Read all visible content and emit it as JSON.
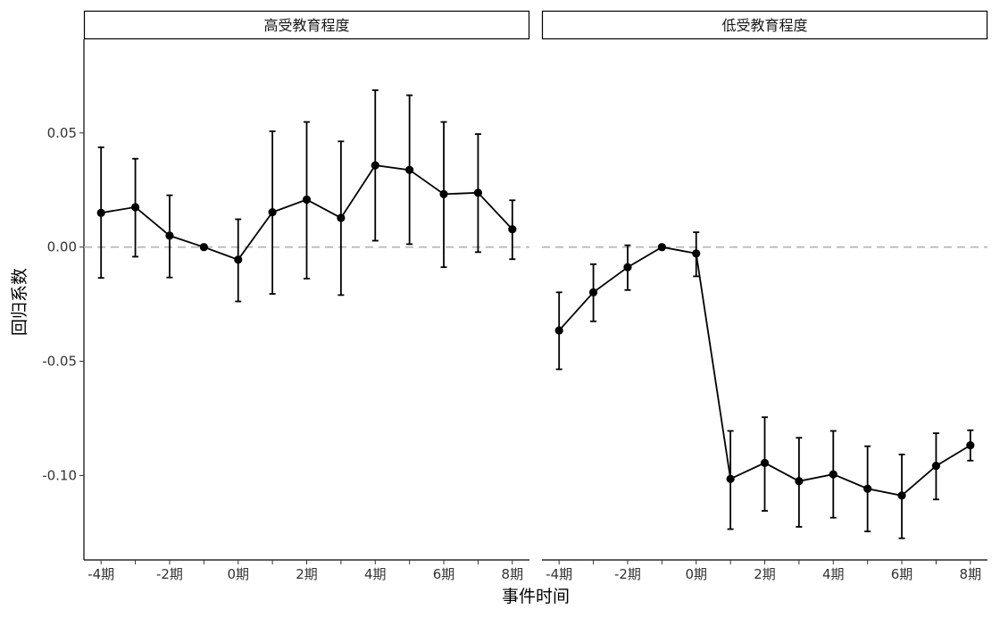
{
  "chart_data": {
    "type": "line",
    "xlabel": "事件时间",
    "ylabel": "回归系数",
    "x": [
      -4,
      -3,
      -2,
      -1,
      0,
      1,
      2,
      3,
      4,
      5,
      6,
      7,
      8
    ],
    "xtick_values": [
      -4,
      -2,
      0,
      2,
      4,
      6,
      8
    ],
    "xtick_labels": [
      "-4期",
      "-2期",
      "0期",
      "2期",
      "4期",
      "6期",
      "8期"
    ],
    "xlim": [
      -4.5,
      8.5
    ],
    "yticks": [
      0.05,
      0.0,
      -0.05,
      -0.1
    ],
    "ytick_labels": [
      "0.05",
      "0.00",
      "-0.05",
      "-0.10"
    ],
    "ylim": [
      -0.137,
      0.091
    ],
    "reference_line": {
      "y": 0,
      "style": "dashed",
      "color": "#b3b3b3"
    },
    "line_color": "#000000",
    "grid": false,
    "facets": [
      {
        "label": "高受教育程度",
        "estimate": [
          0.015,
          0.0175,
          0.005,
          0.0,
          -0.0055,
          0.0153,
          0.0208,
          0.0128,
          0.0358,
          0.0338,
          0.0232,
          0.0238,
          0.0078
        ],
        "ci_low": [
          -0.0135,
          -0.0042,
          -0.0133,
          0.0,
          -0.0238,
          -0.0205,
          -0.0138,
          -0.021,
          0.0028,
          0.0013,
          -0.0088,
          -0.0022,
          -0.0053
        ],
        "ci_high": [
          0.0437,
          0.0387,
          0.0227,
          0.0,
          0.0122,
          0.0507,
          0.0548,
          0.0463,
          0.0687,
          0.0665,
          0.0548,
          0.0495,
          0.0205
        ]
      },
      {
        "label": "低受教育程度",
        "estimate": [
          -0.0365,
          -0.0198,
          -0.0088,
          0.0,
          -0.0028,
          -0.1015,
          -0.0945,
          -0.1025,
          -0.0995,
          -0.1058,
          -0.1088,
          -0.0958,
          -0.0868
        ],
        "ci_low": [
          -0.0535,
          -0.0325,
          -0.0188,
          0.0,
          -0.0128,
          -0.1235,
          -0.1155,
          -0.1225,
          -0.1185,
          -0.1245,
          -0.1275,
          -0.1105,
          -0.0935
        ],
        "ci_high": [
          -0.0198,
          -0.0075,
          0.0008,
          0.0,
          0.0065,
          -0.0805,
          -0.0745,
          -0.0835,
          -0.0805,
          -0.0872,
          -0.0908,
          -0.0815,
          -0.0802
        ]
      }
    ]
  }
}
